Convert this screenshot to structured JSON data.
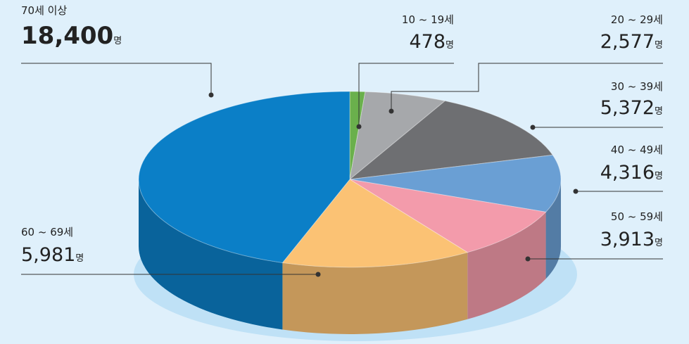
{
  "chart_data": {
    "type": "pie",
    "categories": [
      "10 ~ 19세",
      "20 ~ 29세",
      "30 ~ 39세",
      "40 ~ 49세",
      "50 ~ 59세",
      "60 ~ 69세",
      "70세 이상"
    ],
    "values": [
      478,
      2577,
      5372,
      4316,
      3913,
      5981,
      18400
    ],
    "value_labels": [
      "478",
      "2,577",
      "5,372",
      "4,316",
      "3,913",
      "5,981",
      "18,400"
    ],
    "unit": "명",
    "colors": [
      "#6ab04c",
      "#a6a8ab",
      "#6e6f72",
      "#6a9fd4",
      "#f39bab",
      "#fbc274",
      "#0b7fc7"
    ]
  }
}
